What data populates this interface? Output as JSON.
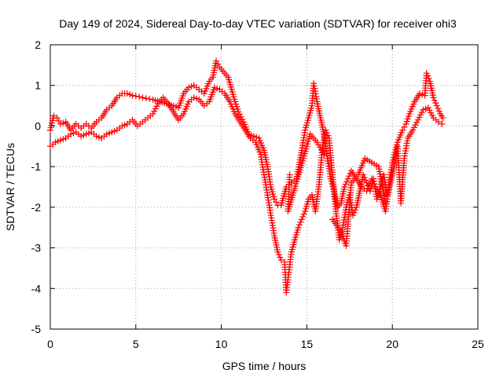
{
  "chart_data": {
    "type": "scatter",
    "title": "Day 149 of 2024, Sidereal Day-to-day VTEC variation (SDTVAR) for receiver ohi3",
    "xlabel": "GPS time / hours",
    "ylabel": "SDTVAR / TECUs",
    "xlim": [
      0,
      25
    ],
    "ylim": [
      -5,
      2
    ],
    "xticks": [
      0,
      5,
      10,
      15,
      20,
      25
    ],
    "yticks": [
      -5,
      -4,
      -3,
      -2,
      -1,
      0,
      1,
      2
    ],
    "grid": true,
    "marker": "+",
    "series": [
      {
        "name": "SDTVAR",
        "color": "#ff0000",
        "points": [
          [
            0.0,
            -0.1
          ],
          [
            0.2,
            0.25
          ],
          [
            0.4,
            0.2
          ],
          [
            0.6,
            0.05
          ],
          [
            0.9,
            0.1
          ],
          [
            1.2,
            -0.1
          ],
          [
            1.5,
            0.05
          ],
          [
            1.8,
            -0.05
          ],
          [
            2.1,
            0.05
          ],
          [
            2.4,
            -0.05
          ],
          [
            2.7,
            0.1
          ],
          [
            3.0,
            0.2
          ],
          [
            3.3,
            0.4
          ],
          [
            3.6,
            0.5
          ],
          [
            3.9,
            0.7
          ],
          [
            4.2,
            0.8
          ],
          [
            4.5,
            0.8
          ],
          [
            4.8,
            0.75
          ],
          [
            5.2,
            0.72
          ],
          [
            5.6,
            0.68
          ],
          [
            6.0,
            0.65
          ],
          [
            6.4,
            0.6
          ],
          [
            6.8,
            0.55
          ],
          [
            7.2,
            0.5
          ],
          [
            7.5,
            0.45
          ],
          [
            7.8,
            0.8
          ],
          [
            8.1,
            0.95
          ],
          [
            8.4,
            1.0
          ],
          [
            8.7,
            0.9
          ],
          [
            9.0,
            0.8
          ],
          [
            9.3,
            1.1
          ],
          [
            9.5,
            1.2
          ],
          [
            9.7,
            1.6
          ],
          [
            9.9,
            1.45
          ],
          [
            10.1,
            1.35
          ],
          [
            10.4,
            1.2
          ],
          [
            10.6,
            0.9
          ],
          [
            10.8,
            0.6
          ],
          [
            11.0,
            0.35
          ],
          [
            11.3,
            0.1
          ],
          [
            11.6,
            -0.2
          ],
          [
            11.9,
            -0.25
          ],
          [
            12.2,
            -0.3
          ],
          [
            12.5,
            -0.6
          ],
          [
            12.7,
            -1.0
          ],
          [
            12.9,
            -1.5
          ],
          [
            13.1,
            -1.8
          ],
          [
            13.3,
            -1.95
          ],
          [
            13.5,
            -1.95
          ],
          [
            13.8,
            -1.5
          ],
          [
            14.1,
            -1.4
          ],
          [
            14.4,
            -1.3
          ],
          [
            14.7,
            -0.6
          ],
          [
            14.9,
            -0.1
          ],
          [
            15.1,
            0.2
          ],
          [
            15.3,
            0.5
          ],
          [
            15.4,
            1.05
          ],
          [
            15.6,
            0.6
          ],
          [
            15.8,
            0.2
          ],
          [
            16.0,
            -0.2
          ],
          [
            16.2,
            -0.8
          ],
          [
            16.4,
            -1.3
          ],
          [
            16.6,
            -1.6
          ],
          [
            16.8,
            -2.0
          ],
          [
            17.0,
            -1.9
          ],
          [
            17.2,
            -1.5
          ],
          [
            17.4,
            -1.3
          ],
          [
            17.6,
            -1.1
          ],
          [
            17.9,
            -1.3
          ],
          [
            18.2,
            -1.5
          ],
          [
            18.5,
            -1.6
          ],
          [
            18.8,
            -1.3
          ],
          [
            19.0,
            -1.5
          ],
          [
            19.3,
            -1.7
          ],
          [
            19.6,
            -2.1
          ],
          [
            19.8,
            -1.5
          ],
          [
            20.0,
            -0.9
          ],
          [
            20.3,
            -0.4
          ],
          [
            20.6,
            -0.1
          ],
          [
            20.8,
            0.05
          ],
          [
            21.0,
            0.3
          ],
          [
            21.3,
            0.6
          ],
          [
            21.6,
            0.8
          ],
          [
            21.9,
            0.75
          ],
          [
            22.0,
            1.3
          ],
          [
            22.2,
            1.1
          ],
          [
            22.4,
            0.7
          ],
          [
            22.6,
            0.5
          ],
          [
            22.8,
            0.3
          ],
          [
            22.95,
            0.2
          ],
          [
            0.0,
            -0.5
          ],
          [
            0.3,
            -0.4
          ],
          [
            0.6,
            -0.35
          ],
          [
            0.9,
            -0.3
          ],
          [
            1.2,
            -0.2
          ],
          [
            1.5,
            -0.15
          ],
          [
            1.8,
            -0.25
          ],
          [
            2.1,
            -0.2
          ],
          [
            2.4,
            -0.15
          ],
          [
            2.7,
            -0.25
          ],
          [
            3.0,
            -0.3
          ],
          [
            3.3,
            -0.2
          ],
          [
            3.6,
            -0.15
          ],
          [
            3.9,
            -0.1
          ],
          [
            4.2,
            0.0
          ],
          [
            4.5,
            0.05
          ],
          [
            4.8,
            0.15
          ],
          [
            5.1,
            0.0
          ],
          [
            5.4,
            0.1
          ],
          [
            5.7,
            0.2
          ],
          [
            6.0,
            0.3
          ],
          [
            6.3,
            0.55
          ],
          [
            6.6,
            0.7
          ],
          [
            6.9,
            0.55
          ],
          [
            7.2,
            0.35
          ],
          [
            7.5,
            0.15
          ],
          [
            7.8,
            0.3
          ],
          [
            8.1,
            0.6
          ],
          [
            8.4,
            0.7
          ],
          [
            8.7,
            0.65
          ],
          [
            9.0,
            0.5
          ],
          [
            9.3,
            0.6
          ],
          [
            9.6,
            0.95
          ],
          [
            9.9,
            0.9
          ],
          [
            10.2,
            0.8
          ],
          [
            10.5,
            0.6
          ],
          [
            10.8,
            0.3
          ],
          [
            11.1,
            0.1
          ],
          [
            11.4,
            -0.1
          ],
          [
            11.7,
            -0.3
          ],
          [
            12.0,
            -0.4
          ],
          [
            12.3,
            -0.7
          ],
          [
            12.5,
            -1.2
          ],
          [
            12.7,
            -1.7
          ],
          [
            12.9,
            -2.2
          ],
          [
            13.1,
            -2.7
          ],
          [
            13.3,
            -3.1
          ],
          [
            13.5,
            -3.3
          ],
          [
            13.7,
            -3.35
          ],
          [
            13.8,
            -4.1
          ],
          [
            13.95,
            -3.6
          ],
          [
            14.1,
            -3.1
          ],
          [
            14.3,
            -2.8
          ],
          [
            14.5,
            -2.5
          ],
          [
            14.7,
            -2.3
          ],
          [
            14.9,
            -2.1
          ],
          [
            15.1,
            -1.8
          ],
          [
            15.3,
            -1.7
          ],
          [
            15.5,
            -2.1
          ],
          [
            15.7,
            -1.5
          ],
          [
            15.9,
            -0.6
          ],
          [
            16.1,
            -0.1
          ],
          [
            16.3,
            -0.3
          ],
          [
            16.5,
            -1.2
          ],
          [
            16.7,
            -2.1
          ],
          [
            16.9,
            -2.8
          ],
          [
            17.1,
            -2.5
          ],
          [
            17.3,
            -2.0
          ],
          [
            17.5,
            -1.7
          ],
          [
            17.7,
            -2.2
          ],
          [
            17.9,
            -2.0
          ],
          [
            18.1,
            -1.6
          ],
          [
            18.3,
            -1.2
          ],
          [
            18.5,
            -1.4
          ],
          [
            18.7,
            -1.6
          ],
          [
            18.9,
            -1.3
          ],
          [
            19.1,
            -1.8
          ],
          [
            19.3,
            -1.5
          ],
          [
            19.5,
            -1.2
          ],
          [
            19.7,
            -1.7
          ],
          [
            19.9,
            -1.4
          ],
          [
            20.1,
            -1.0
          ],
          [
            20.3,
            -0.5
          ],
          [
            20.5,
            -1.9
          ],
          [
            20.7,
            -0.8
          ],
          [
            20.9,
            -0.3
          ],
          [
            21.2,
            -0.1
          ],
          [
            21.5,
            0.15
          ],
          [
            21.8,
            0.4
          ],
          [
            22.1,
            0.45
          ],
          [
            22.4,
            0.2
          ],
          [
            22.7,
            0.1
          ],
          [
            22.9,
            0.05
          ],
          [
            16.5,
            -2.3
          ],
          [
            17.0,
            -2.6
          ],
          [
            17.3,
            -2.95
          ],
          [
            17.6,
            -1.4
          ],
          [
            18.0,
            -1.2
          ],
          [
            18.4,
            -0.8
          ],
          [
            18.8,
            -0.9
          ],
          [
            19.2,
            -1.0
          ],
          [
            19.6,
            -1.9
          ],
          [
            16.0,
            -0.7
          ],
          [
            15.6,
            -0.4
          ],
          [
            15.2,
            -0.2
          ],
          [
            14.8,
            -0.8
          ],
          [
            13.9,
            -2.1
          ],
          [
            14.0,
            -1.2
          ]
        ]
      }
    ]
  }
}
